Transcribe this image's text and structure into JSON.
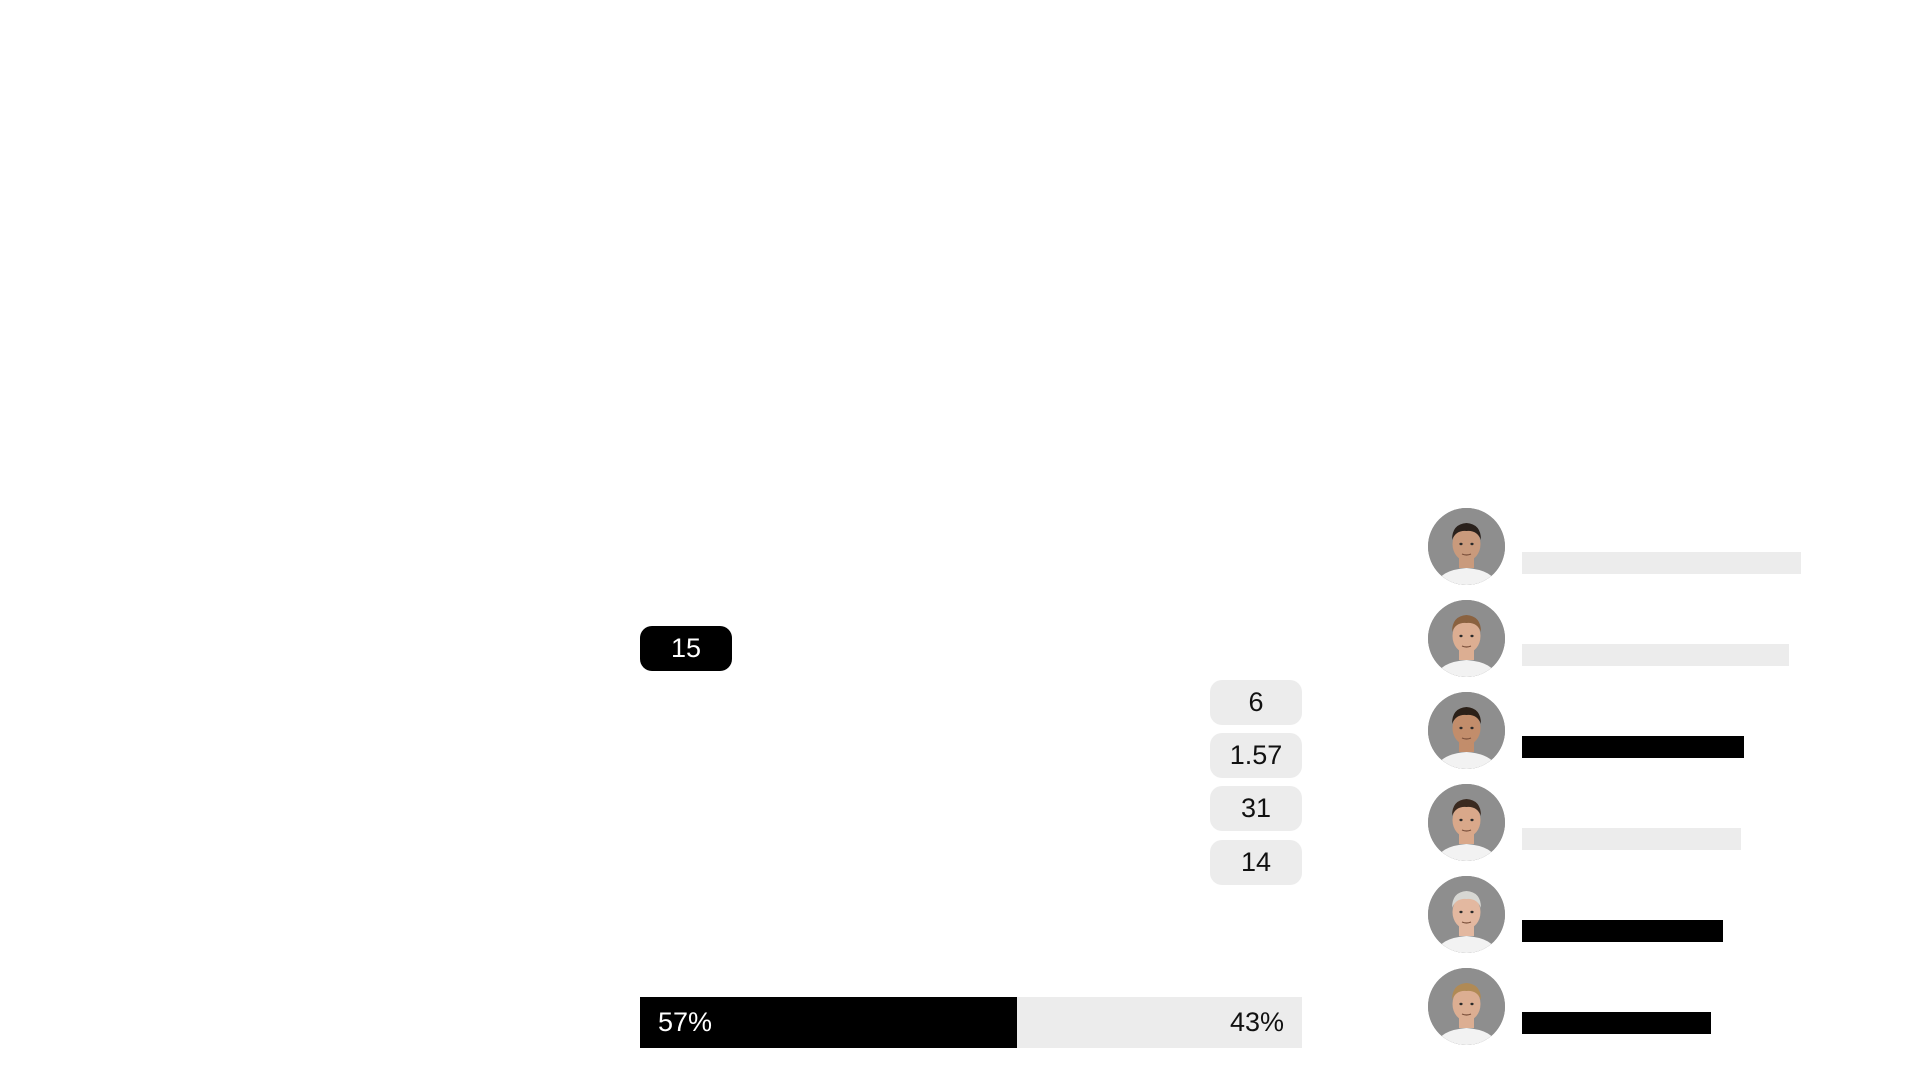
{
  "highlight_stat": {
    "value": "15"
  },
  "stats": [
    {
      "value": "6"
    },
    {
      "value": "1.57"
    },
    {
      "value": "31"
    },
    {
      "value": "14"
    }
  ],
  "possession": {
    "left_label": "57%",
    "right_label": "43%",
    "left_fraction": 0.57,
    "left_color": "#000000",
    "right_color": "#ececec"
  },
  "players": [
    {
      "avatar_icon": "player-photo",
      "bar_fraction": 0.93,
      "bar_color": "#ececec",
      "hair": "#2a211c",
      "skin": "#c99a7c"
    },
    {
      "avatar_icon": "player-photo",
      "bar_fraction": 0.89,
      "bar_color": "#ececec",
      "hair": "#8a6240",
      "skin": "#dcae92"
    },
    {
      "avatar_icon": "player-photo",
      "bar_fraction": 0.74,
      "bar_color": "#000000",
      "hair": "#2b2018",
      "skin": "#c28d6b"
    },
    {
      "avatar_icon": "player-photo",
      "bar_fraction": 0.73,
      "bar_color": "#ececec",
      "hair": "#3a2a20",
      "skin": "#d9a88a"
    },
    {
      "avatar_icon": "player-photo",
      "bar_fraction": 0.67,
      "bar_color": "#000000",
      "hair": "#d7d7d3",
      "skin": "#e3b8a0"
    },
    {
      "avatar_icon": "player-photo",
      "bar_fraction": 0.63,
      "bar_color": "#000000",
      "hair": "#b08a55",
      "skin": "#dcae92"
    }
  ]
}
